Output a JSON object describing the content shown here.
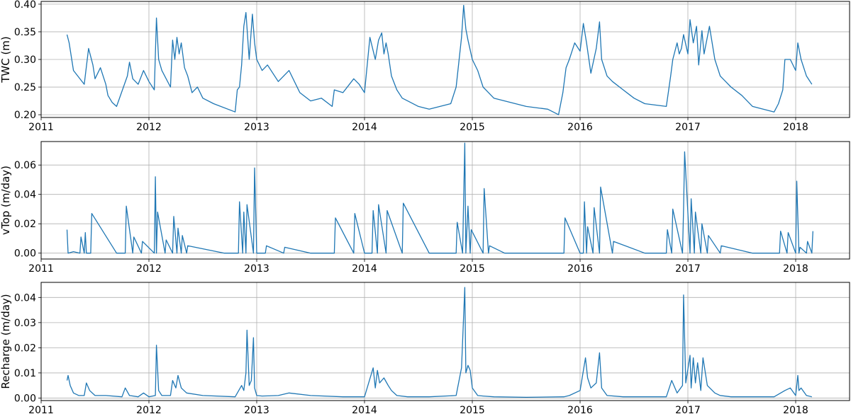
{
  "colors": {
    "series": "#1f77b4",
    "grid": "#b0b0b0",
    "axis": "#000000"
  },
  "chart_data": [
    {
      "type": "line",
      "xlabel": "",
      "ylabel": "TWC (m)",
      "xlim": [
        2011.0,
        2018.5
      ],
      "ylim": [
        0.195,
        0.405
      ],
      "x_ticks": [
        2011,
        2012,
        2013,
        2014,
        2015,
        2016,
        2017,
        2018
      ],
      "x_tick_labels": [
        "2011",
        "2012",
        "2013",
        "2014",
        "2015",
        "2016",
        "2017",
        "2018"
      ],
      "y_ticks": [
        0.2,
        0.25,
        0.3,
        0.35,
        0.4
      ],
      "y_tick_labels": [
        "0.20",
        "0.25",
        "0.30",
        "0.35",
        "0.40"
      ],
      "grid": true,
      "series": [
        {
          "x": [
            2011.24,
            2011.26,
            2011.3,
            2011.4,
            2011.44,
            2011.48,
            2011.5,
            2011.55,
            2011.6,
            2011.62,
            2011.66,
            2011.7,
            2011.8,
            2011.82,
            2011.85,
            2011.9,
            2011.95,
            2012.0,
            2012.05,
            2012.07,
            2012.09,
            2012.12,
            2012.2,
            2012.22,
            2012.24,
            2012.26,
            2012.28,
            2012.3,
            2012.33,
            2012.36,
            2012.4,
            2012.45,
            2012.5,
            2012.6,
            2012.8,
            2012.82,
            2012.84,
            2012.86,
            2012.88,
            2012.9,
            2012.93,
            2012.96,
            2012.98,
            2013.0,
            2013.05,
            2013.1,
            2013.2,
            2013.3,
            2013.4,
            2013.5,
            2013.6,
            2013.7,
            2013.72,
            2013.8,
            2013.9,
            2013.95,
            2014.0,
            2014.05,
            2014.1,
            2014.13,
            2014.16,
            2014.18,
            2014.2,
            2014.22,
            2014.25,
            2014.3,
            2014.35,
            2014.4,
            2014.5,
            2014.6,
            2014.8,
            2014.85,
            2014.9,
            2014.92,
            2014.94,
            2014.96,
            2015.0,
            2015.05,
            2015.1,
            2015.2,
            2015.3,
            2015.5,
            2015.7,
            2015.8,
            2015.84,
            2015.87,
            2015.9,
            2015.95,
            2016.0,
            2016.03,
            2016.06,
            2016.1,
            2016.15,
            2016.18,
            2016.2,
            2016.25,
            2016.3,
            2016.4,
            2016.5,
            2016.6,
            2016.8,
            2016.84,
            2016.86,
            2016.9,
            2016.92,
            2016.94,
            2016.96,
            2017.0,
            2017.02,
            2017.05,
            2017.08,
            2017.1,
            2017.13,
            2017.15,
            2017.2,
            2017.25,
            2017.3,
            2017.35,
            2017.4,
            2017.5,
            2017.6,
            2017.8,
            2017.84,
            2017.88,
            2017.9,
            2017.95,
            2018.0,
            2018.02,
            2018.05,
            2018.1,
            2018.15
          ],
          "y": [
            0.345,
            0.33,
            0.28,
            0.255,
            0.32,
            0.29,
            0.265,
            0.285,
            0.255,
            0.235,
            0.222,
            0.215,
            0.27,
            0.295,
            0.265,
            0.255,
            0.28,
            0.26,
            0.245,
            0.375,
            0.3,
            0.28,
            0.25,
            0.335,
            0.3,
            0.34,
            0.31,
            0.33,
            0.285,
            0.27,
            0.24,
            0.25,
            0.23,
            0.22,
            0.205,
            0.245,
            0.25,
            0.29,
            0.36,
            0.385,
            0.3,
            0.382,
            0.33,
            0.3,
            0.28,
            0.29,
            0.26,
            0.28,
            0.24,
            0.225,
            0.23,
            0.215,
            0.245,
            0.24,
            0.265,
            0.255,
            0.24,
            0.34,
            0.3,
            0.335,
            0.348,
            0.31,
            0.33,
            0.31,
            0.27,
            0.245,
            0.23,
            0.225,
            0.215,
            0.21,
            0.22,
            0.25,
            0.34,
            0.398,
            0.355,
            0.335,
            0.3,
            0.28,
            0.25,
            0.23,
            0.225,
            0.215,
            0.21,
            0.2,
            0.24,
            0.285,
            0.3,
            0.33,
            0.315,
            0.365,
            0.33,
            0.275,
            0.32,
            0.368,
            0.3,
            0.27,
            0.26,
            0.245,
            0.23,
            0.22,
            0.215,
            0.27,
            0.3,
            0.33,
            0.31,
            0.32,
            0.345,
            0.31,
            0.372,
            0.33,
            0.36,
            0.29,
            0.352,
            0.31,
            0.36,
            0.3,
            0.27,
            0.26,
            0.25,
            0.235,
            0.215,
            0.205,
            0.22,
            0.245,
            0.3,
            0.3,
            0.28,
            0.33,
            0.3,
            0.27,
            0.255
          ]
        }
      ]
    },
    {
      "type": "line",
      "xlabel": "",
      "ylabel": "vTop (m/day)",
      "xlim": [
        2011.0,
        2018.5
      ],
      "ylim": [
        -0.004,
        0.076
      ],
      "x_ticks": [
        2011,
        2012,
        2013,
        2014,
        2015,
        2016,
        2017,
        2018
      ],
      "x_tick_labels": [
        "2011",
        "2012",
        "2013",
        "2014",
        "2015",
        "2016",
        "2017",
        "2018"
      ],
      "y_ticks": [
        0.0,
        0.02,
        0.04,
        0.06
      ],
      "y_tick_labels": [
        "0.00",
        "0.02",
        "0.04",
        "0.06"
      ],
      "grid": true,
      "series": [
        {
          "x": [
            2011.24,
            2011.25,
            2011.3,
            2011.36,
            2011.37,
            2011.4,
            2011.41,
            2011.42,
            2011.46,
            2011.47,
            2011.7,
            2011.78,
            2011.79,
            2011.85,
            2011.86,
            2011.93,
            2011.94,
            2012.05,
            2012.06,
            2012.07,
            2012.08,
            2012.15,
            2012.16,
            2012.22,
            2012.23,
            2012.26,
            2012.27,
            2012.3,
            2012.31,
            2012.35,
            2012.36,
            2012.7,
            2012.83,
            2012.84,
            2012.87,
            2012.88,
            2012.9,
            2012.91,
            2012.97,
            2012.98,
            2013.0,
            2013.08,
            2013.09,
            2013.25,
            2013.26,
            2013.5,
            2013.72,
            2013.73,
            2013.9,
            2013.91,
            2014.0,
            2014.07,
            2014.08,
            2014.12,
            2014.13,
            2014.2,
            2014.21,
            2014.35,
            2014.36,
            2014.6,
            2014.85,
            2014.86,
            2014.91,
            2014.93,
            2014.94,
            2014.96,
            2014.98,
            2014.99,
            2015.1,
            2015.11,
            2015.15,
            2015.16,
            2015.3,
            2015.6,
            2015.85,
            2015.86,
            2016.0,
            2016.03,
            2016.04,
            2016.06,
            2016.07,
            2016.12,
            2016.13,
            2016.18,
            2016.19,
            2016.3,
            2016.31,
            2016.6,
            2016.8,
            2016.81,
            2016.85,
            2016.86,
            2016.95,
            2016.96,
            2016.97,
            2017.02,
            2017.03,
            2017.06,
            2017.07,
            2017.12,
            2017.13,
            2017.18,
            2017.19,
            2017.3,
            2017.31,
            2017.6,
            2017.85,
            2017.86,
            2017.92,
            2017.93,
            2018.0,
            2018.01,
            2018.03,
            2018.04,
            2018.1,
            2018.11,
            2018.15,
            2018.16
          ],
          "y": [
            0.016,
            0.0,
            0.001,
            0.0,
            0.011,
            0.0,
            0.014,
            0.0,
            0.0,
            0.027,
            0.0,
            0.0,
            0.032,
            0.0,
            0.011,
            0.0,
            0.008,
            0.0,
            0.052,
            0.0,
            0.028,
            0.0,
            0.009,
            0.0,
            0.025,
            0.0,
            0.017,
            0.0,
            0.012,
            0.0,
            0.005,
            0.0,
            0.0,
            0.035,
            0.0,
            0.028,
            0.0,
            0.033,
            0.0,
            0.058,
            0.0,
            0.0,
            0.005,
            0.0,
            0.004,
            0.0,
            0.0,
            0.024,
            0.0,
            0.027,
            0.0,
            0.0,
            0.029,
            0.0,
            0.033,
            0.0,
            0.029,
            0.0,
            0.034,
            0.0,
            0.0,
            0.021,
            0.0,
            0.075,
            0.0,
            0.032,
            0.0,
            0.016,
            0.0,
            0.044,
            0.0,
            0.005,
            0.0,
            0.0,
            0.0,
            0.024,
            0.0,
            0.0,
            0.035,
            0.0,
            0.018,
            0.0,
            0.031,
            0.0,
            0.045,
            0.0,
            0.008,
            0.0,
            0.0,
            0.016,
            0.0,
            0.03,
            0.0,
            0.03,
            0.069,
            0.0,
            0.037,
            0.0,
            0.028,
            0.0,
            0.02,
            0.0,
            0.012,
            0.0,
            0.005,
            0.0,
            0.0,
            0.015,
            0.0,
            0.014,
            0.0,
            0.049,
            0.0,
            0.004,
            0.0,
            0.008,
            0.0,
            0.015
          ]
        }
      ]
    },
    {
      "type": "line",
      "xlabel": "",
      "ylabel": "Recharge (m/day)",
      "xlim": [
        2011.0,
        2018.5
      ],
      "ylim": [
        -0.001,
        0.046
      ],
      "x_ticks": [
        2011,
        2012,
        2013,
        2014,
        2015,
        2016,
        2017,
        2018
      ],
      "x_tick_labels": [
        "2011",
        "2012",
        "2013",
        "2014",
        "2015",
        "2016",
        "2017",
        "2018"
      ],
      "y_ticks": [
        0.0,
        0.01,
        0.02,
        0.03,
        0.04
      ],
      "y_tick_labels": [
        "0.00",
        "0.01",
        "0.02",
        "0.03",
        "0.04"
      ],
      "grid": true,
      "series": [
        {
          "x": [
            2011.24,
            2011.25,
            2011.27,
            2011.3,
            2011.35,
            2011.4,
            2011.42,
            2011.45,
            2011.5,
            2011.6,
            2011.75,
            2011.78,
            2011.82,
            2011.9,
            2011.95,
            2012.0,
            2012.06,
            2012.07,
            2012.09,
            2012.12,
            2012.2,
            2012.22,
            2012.25,
            2012.27,
            2012.3,
            2012.35,
            2012.5,
            2012.8,
            2012.86,
            2012.88,
            2012.9,
            2012.91,
            2012.93,
            2012.95,
            2012.97,
            2012.98,
            2013.0,
            2013.05,
            2013.2,
            2013.3,
            2013.5,
            2013.8,
            2014.0,
            2014.08,
            2014.1,
            2014.12,
            2014.14,
            2014.18,
            2014.22,
            2014.25,
            2014.3,
            2014.4,
            2014.6,
            2014.85,
            2014.9,
            2014.93,
            2014.94,
            2014.96,
            2014.98,
            2015.0,
            2015.05,
            2015.1,
            2015.2,
            2015.5,
            2015.85,
            2015.9,
            2016.0,
            2016.05,
            2016.07,
            2016.1,
            2016.15,
            2016.18,
            2016.2,
            2016.25,
            2016.4,
            2016.8,
            2016.85,
            2016.9,
            2016.95,
            2016.96,
            2016.98,
            2017.02,
            2017.03,
            2017.05,
            2017.07,
            2017.09,
            2017.12,
            2017.14,
            2017.18,
            2017.25,
            2017.3,
            2017.4,
            2017.8,
            2017.9,
            2017.95,
            2018.0,
            2018.02,
            2018.03,
            2018.05,
            2018.1,
            2018.15
          ],
          "y": [
            0.007,
            0.009,
            0.005,
            0.002,
            0.001,
            0.001,
            0.006,
            0.003,
            0.001,
            0.001,
            0.0005,
            0.004,
            0.001,
            0.0005,
            0.002,
            0.0005,
            0.001,
            0.021,
            0.003,
            0.001,
            0.001,
            0.007,
            0.004,
            0.009,
            0.004,
            0.002,
            0.001,
            0.0005,
            0.005,
            0.003,
            0.01,
            0.027,
            0.005,
            0.007,
            0.024,
            0.004,
            0.001,
            0.0008,
            0.001,
            0.002,
            0.001,
            0.0005,
            0.0005,
            0.012,
            0.004,
            0.011,
            0.006,
            0.008,
            0.005,
            0.003,
            0.001,
            0.0005,
            0.0005,
            0.001,
            0.012,
            0.044,
            0.01,
            0.013,
            0.011,
            0.004,
            0.001,
            0.0008,
            0.0005,
            0.0003,
            0.0005,
            0.001,
            0.003,
            0.016,
            0.008,
            0.004,
            0.006,
            0.018,
            0.004,
            0.001,
            0.0005,
            0.0005,
            0.007,
            0.002,
            0.005,
            0.041,
            0.006,
            0.017,
            0.004,
            0.016,
            0.006,
            0.014,
            0.003,
            0.016,
            0.005,
            0.002,
            0.001,
            0.0005,
            0.0005,
            0.003,
            0.004,
            0.001,
            0.009,
            0.003,
            0.004,
            0.001,
            0.0005
          ]
        }
      ]
    }
  ]
}
